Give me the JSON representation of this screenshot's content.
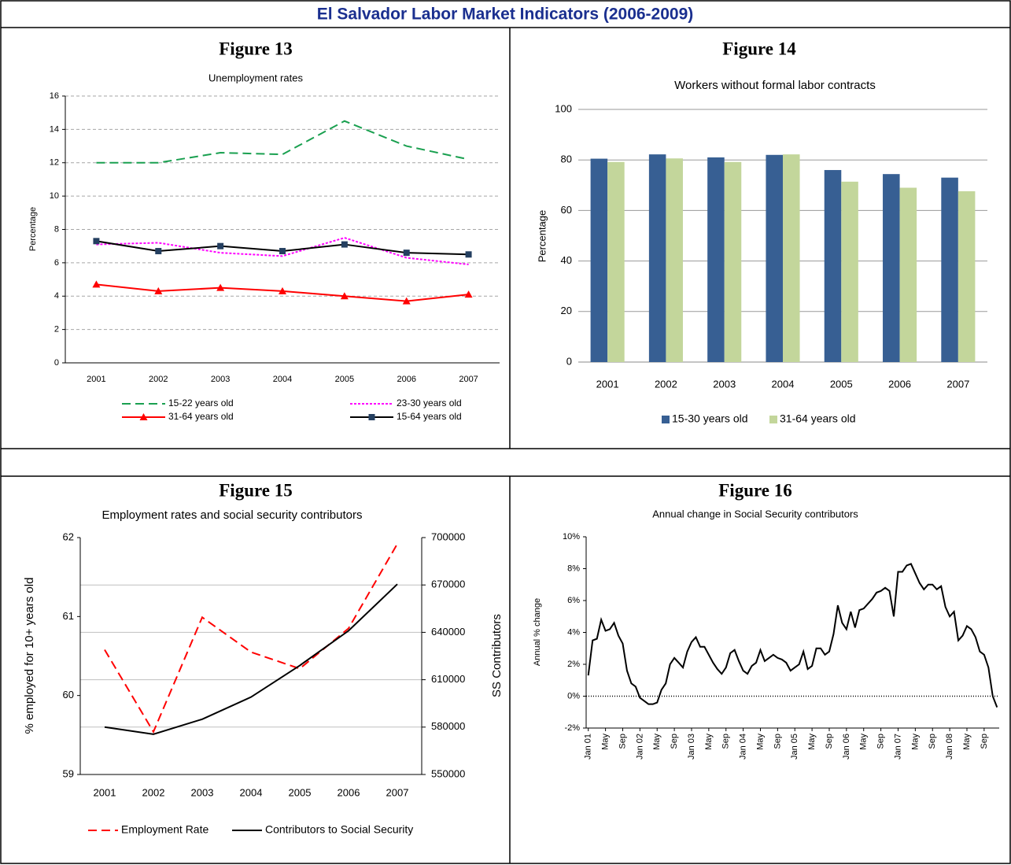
{
  "title": "El Salvador Labor Market Indicators (2006-2009)",
  "chart_data": [
    {
      "type": "line",
      "figure": "Figure 13",
      "title": "Unemployment rates",
      "ylabel": "Percentage",
      "categories": [
        "2001",
        "2002",
        "2003",
        "2004",
        "2005",
        "2006",
        "2007"
      ],
      "ylim": [
        0,
        16
      ],
      "yticks": [
        0,
        2,
        4,
        6,
        8,
        10,
        12,
        14,
        16
      ],
      "grid": "dashed",
      "legend": "bottom",
      "series": [
        {
          "name": "15-22 years old",
          "color": "#1aa050",
          "dash": "long-dash",
          "values": [
            12.0,
            12.0,
            12.6,
            12.5,
            14.5,
            13.0,
            12.2
          ]
        },
        {
          "name": "23-30 years old",
          "color": "#ff00ff",
          "dash": "dot",
          "values": [
            7.1,
            7.2,
            6.6,
            6.4,
            7.5,
            6.3,
            5.9
          ]
        },
        {
          "name": "31-64 years old",
          "color": "#ff0000",
          "dash": "solid",
          "marker": "triangle",
          "values": [
            4.7,
            4.3,
            4.5,
            4.3,
            4.0,
            3.7,
            4.1
          ]
        },
        {
          "name": "15-64 years old",
          "color": "#000000",
          "marker_color": "#243f60",
          "dash": "solid",
          "marker": "square",
          "values": [
            7.3,
            6.7,
            7.0,
            6.7,
            7.1,
            6.6,
            6.5
          ]
        }
      ]
    },
    {
      "type": "bar",
      "figure": "Figure 14",
      "title": "Workers without formal labor contracts",
      "ylabel": "Percentage",
      "categories": [
        "2001",
        "2002",
        "2003",
        "2004",
        "2005",
        "2006",
        "2007"
      ],
      "ylim": [
        0,
        100
      ],
      "yticks": [
        0,
        20,
        40,
        60,
        80,
        100
      ],
      "grid": "solid",
      "legend": "bottom",
      "series": [
        {
          "name": "15-30 years old",
          "color": "#375f93",
          "values": [
            80.5,
            82.2,
            81.0,
            82.0,
            76.0,
            74.4,
            73.0
          ]
        },
        {
          "name": "31-64 years old",
          "color": "#c3d69b",
          "values": [
            79.2,
            80.6,
            79.2,
            82.2,
            71.4,
            69.0,
            67.6
          ]
        }
      ]
    },
    {
      "type": "line",
      "figure": "Figure 15",
      "title": "Employment  rates and social security contributors",
      "ylabel": "% employed for 10+ years old",
      "y2label": "SS Contributors",
      "categories": [
        "2001",
        "2002",
        "2003",
        "2004",
        "2005",
        "2006",
        "2007"
      ],
      "ylim": [
        59,
        62
      ],
      "yticks": [
        59,
        60,
        61,
        62
      ],
      "y2lim": [
        550000,
        700000
      ],
      "y2ticks": [
        550000,
        580000,
        610000,
        640000,
        670000,
        700000
      ],
      "grid": "y2",
      "legend": "bottom",
      "series": [
        {
          "name": "Employment Rate",
          "color": "#ff0000",
          "dash": "long-dash",
          "values": [
            60.58,
            59.54,
            60.99,
            60.55,
            60.34,
            60.85,
            61.92
          ]
        },
        {
          "name": "Contributors to Social Security",
          "color": "#000000",
          "dash": "solid",
          "axis": "y2",
          "values": [
            580000,
            575500,
            585000,
            599000,
            619000,
            641000,
            670500
          ]
        }
      ]
    },
    {
      "type": "line",
      "figure": "Figure 16",
      "title": "Annual change in Social Security contributors",
      "ylabel": "Annual % change",
      "categories": [
        "Jan 01",
        null,
        null,
        null,
        "May",
        null,
        null,
        null,
        "Sep",
        null,
        null,
        null,
        "Jan 02",
        null,
        null,
        null,
        "May",
        null,
        null,
        null,
        "Sep",
        null,
        null,
        null,
        "Jan 03",
        null,
        null,
        null,
        "May",
        null,
        null,
        null,
        "Sep",
        null,
        null,
        null,
        "Jan 04",
        null,
        null,
        null,
        "May",
        null,
        null,
        null,
        "Sep",
        null,
        null,
        null,
        "Jan 05",
        null,
        null,
        null,
        "May",
        null,
        null,
        null,
        "Sep",
        null,
        null,
        null,
        "Jan 06",
        null,
        null,
        null,
        "May",
        null,
        null,
        null,
        "Sep",
        null,
        null,
        null,
        "Jan 07",
        null,
        null,
        null,
        "May",
        null,
        null,
        null,
        "Sep",
        null,
        null,
        null,
        "Jan 08",
        null,
        null,
        null,
        "May",
        null,
        null,
        null,
        "Sep",
        null,
        null,
        null
      ],
      "ylim": [
        -2,
        10
      ],
      "yticks": [
        {
          "value": -2,
          "label": "-2%"
        },
        {
          "value": 0,
          "label": "0%"
        },
        {
          "value": 2,
          "label": "2%"
        },
        {
          "value": 4,
          "label": "4%"
        },
        {
          "value": 6,
          "label": "6%"
        },
        {
          "value": 8,
          "label": "8%"
        },
        {
          "value": 10,
          "label": "10%"
        }
      ],
      "grid": false,
      "zero_line": true,
      "rotate_x_labels": true,
      "series": [
        {
          "color": "#000000",
          "dash": "solid",
          "values": [
            1.3,
            3.5,
            3.6,
            4.8,
            4.1,
            4.2,
            4.6,
            3.8,
            3.3,
            1.6,
            0.8,
            0.6,
            -0.1,
            -0.3,
            -0.5,
            -0.5,
            -0.4,
            0.4,
            0.8,
            2.0,
            2.4,
            2.1,
            1.8,
            2.8,
            3.4,
            3.7,
            3.1,
            3.1,
            2.6,
            2.1,
            1.7,
            1.4,
            1.8,
            2.7,
            2.9,
            2.2,
            1.6,
            1.4,
            1.9,
            2.1,
            2.9,
            2.2,
            2.4,
            2.6,
            2.4,
            2.3,
            2.1,
            1.6,
            1.8,
            2.0,
            2.8,
            1.7,
            1.9,
            3.0,
            3.0,
            2.6,
            2.8,
            3.9,
            5.7,
            4.6,
            4.2,
            5.3,
            4.3,
            5.4,
            5.5,
            5.8,
            6.1,
            6.5,
            6.6,
            6.8,
            6.6,
            5.0,
            7.8,
            7.8,
            8.2,
            8.3,
            7.7,
            7.1,
            6.7,
            7.0,
            7.0,
            6.7,
            6.9,
            5.6,
            5.0,
            5.3,
            3.5,
            3.8,
            4.4,
            4.2,
            3.7,
            2.8,
            2.6,
            1.8,
            0.0,
            -0.7
          ]
        }
      ]
    }
  ]
}
